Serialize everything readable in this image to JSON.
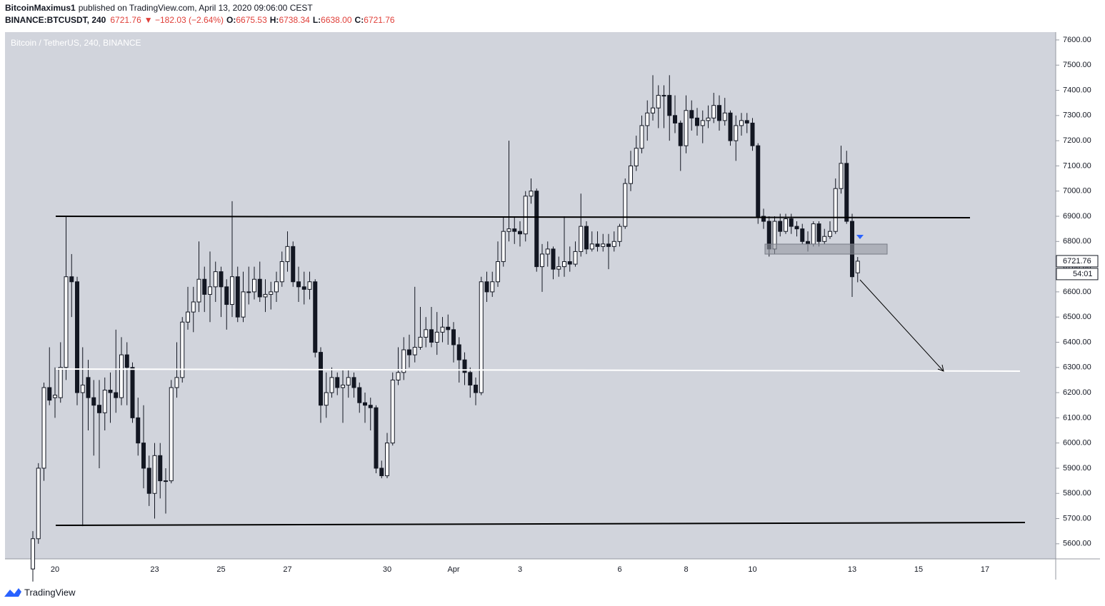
{
  "header": {
    "author": "BitcoinMaximus1",
    "published": "published on TradingView.com, April 13, 2020 09:06:00 CEST",
    "symbol": "BINANCE:BTCUSDT, 240",
    "last": "6721.76",
    "change": "▼ −182.03 (−2.64%)",
    "o_label": "O:",
    "o": "6675.53",
    "h_label": "H:",
    "h": "6738.34",
    "l_label": "L:",
    "l": "6638.00",
    "c_label": "C:",
    "c": "6721.76"
  },
  "chart_data": {
    "type": "candlestick",
    "title": "Bitcoin / TetherUS, 240, BINANCE",
    "categories": [
      null,
      null,
      null,
      null,
      "20",
      null,
      null,
      null,
      null,
      null,
      null,
      null,
      null,
      null,
      null,
      null,
      null,
      null,
      null,
      null,
      null,
      null,
      "23",
      null,
      null,
      null,
      null,
      null,
      null,
      null,
      null,
      null,
      null,
      null,
      "25",
      null,
      null,
      null,
      null,
      null,
      null,
      null,
      null,
      null,
      null,
      null,
      "27",
      null,
      null,
      null,
      null,
      null,
      null,
      null,
      null,
      null,
      null,
      null,
      null,
      null,
      null,
      null,
      null,
      null,
      "30",
      null,
      null,
      null,
      null,
      null,
      null,
      null,
      null,
      null,
      null,
      null,
      "Apr",
      null,
      null,
      null,
      null,
      null,
      null,
      null,
      null,
      null,
      null,
      null,
      "3",
      null,
      null,
      null,
      null,
      null,
      null,
      null,
      null,
      null,
      null,
      null,
      null,
      null,
      null,
      null,
      null,
      null,
      "6",
      null,
      null,
      null,
      null,
      null,
      null,
      null,
      null,
      null,
      null,
      null,
      "8",
      null,
      null,
      null,
      null,
      null,
      null,
      null,
      null,
      null,
      null,
      null,
      "10",
      null,
      null,
      null,
      null,
      null,
      null,
      null,
      null,
      null,
      null,
      null,
      null,
      null,
      null,
      null,
      null,
      null,
      "13",
      null,
      null,
      null,
      null,
      null,
      null,
      null,
      null,
      null,
      null,
      null,
      "15",
      null,
      null,
      null,
      null,
      null,
      null,
      null,
      null,
      null,
      null,
      null,
      "17",
      null,
      null,
      null,
      null,
      null,
      null,
      null,
      null,
      null,
      null,
      null,
      null,
      null
    ],
    "open": [
      5500,
      5620,
      5900,
      6220,
      6180,
      6180,
      6300,
      6660,
      6640,
      6200,
      6260,
      6180,
      6150,
      6120,
      6210,
      6200,
      6180,
      6350,
      6300,
      6100,
      6000,
      5900,
      5800,
      5950,
      5850,
      5850,
      6220,
      6260,
      6480,
      6520,
      6560,
      6650,
      6590,
      6620,
      6680,
      6620,
      6550,
      6660,
      6500,
      6600,
      6600,
      6650,
      6580,
      6590,
      6600,
      6640,
      6720,
      6780,
      6640,
      6620,
      6610,
      6640,
      6360,
      6150,
      6200,
      6260,
      6220,
      6230,
      6260,
      6220,
      6160,
      6150,
      6140,
      5900,
      5870,
      6000,
      6250,
      6280,
      6370,
      6350,
      6380,
      6420,
      6450,
      6400,
      6440,
      6460,
      6450,
      6390,
      6330,
      6280,
      6230,
      6200,
      6640,
      6600,
      6640,
      6720,
      6840,
      6850,
      6840,
      6830,
      6980,
      7000,
      6700,
      6750,
      6770,
      6690,
      6700,
      6720,
      6710,
      6760,
      6860,
      6770,
      6790,
      6780,
      6790,
      6780,
      6800,
      6860,
      7030,
      7100,
      7170,
      7260,
      7310,
      7330,
      7380,
      7380,
      7300,
      7270,
      7180,
      7320,
      7290,
      7260,
      7280,
      7290,
      7340,
      7280,
      7310,
      7200,
      7260,
      7280,
      7270,
      7180,
      6900,
      6880,
      6770,
      6880,
      6840,
      6890,
      6860,
      6850,
      6800,
      6790,
      6870,
      6800,
      6820,
      6840,
      7010,
      7110,
      6880,
      6675.53,
      null,
      null,
      null,
      null,
      null,
      null,
      null,
      null,
      null,
      null,
      null,
      null,
      null,
      null,
      null,
      null,
      null,
      null,
      null,
      null,
      null,
      null,
      null,
      null,
      null,
      null,
      null,
      null,
      null,
      null,
      null,
      null,
      null,
      null,
      null,
      null
    ],
    "high": [
      5650,
      5920,
      6240,
      6380,
      6300,
      6400,
      6900,
      6750,
      6660,
      6380,
      6330,
      6250,
      6250,
      6260,
      6280,
      6450,
      6420,
      6400,
      6320,
      6180,
      6150,
      5950,
      6000,
      6000,
      5900,
      6250,
      6400,
      6500,
      6620,
      6620,
      6800,
      6700,
      6760,
      6720,
      6700,
      6650,
      6960,
      6700,
      6680,
      6700,
      6700,
      6720,
      6650,
      6640,
      6680,
      6760,
      6840,
      6800,
      6700,
      6680,
      6680,
      6650,
      6380,
      6280,
      6300,
      6280,
      6290,
      6290,
      6280,
      6240,
      6200,
      6180,
      6150,
      5930,
      6040,
      6280,
      6380,
      6420,
      6430,
      6620,
      6540,
      6500,
      6540,
      6520,
      6500,
      6510,
      6480,
      6420,
      6360,
      6300,
      6260,
      6660,
      6680,
      6680,
      6800,
      6900,
      7200,
      6900,
      6880,
      7000,
      7050,
      7010,
      6790,
      6800,
      6780,
      6740,
      6900,
      6780,
      6800,
      6990,
      6880,
      6840,
      6840,
      6830,
      6830,
      6840,
      6870,
      7050,
      7160,
      7220,
      7300,
      7360,
      7460,
      7420,
      7420,
      7460,
      7380,
      7280,
      7380,
      7360,
      7330,
      7320,
      7340,
      7390,
      7380,
      7370,
      7320,
      7300,
      7310,
      7310,
      7290,
      7190,
      6930,
      6900,
      6900,
      6910,
      6910,
      6910,
      6880,
      6870,
      6840,
      6880,
      6880,
      6850,
      6880,
      7050,
      7180,
      7160,
      6910,
      6738.34,
      null,
      null,
      null,
      null,
      null,
      null,
      null,
      null,
      null,
      null,
      null,
      null,
      null,
      null,
      null,
      null,
      null,
      null,
      null,
      null,
      null,
      null,
      null,
      null,
      null,
      null,
      null,
      null,
      null,
      null,
      null,
      null,
      null,
      null,
      null,
      null
    ],
    "low": [
      5450,
      5600,
      5850,
      6150,
      6100,
      6160,
      6250,
      6500,
      6150,
      5670,
      6050,
      5950,
      5900,
      6050,
      6080,
      6120,
      6150,
      6150,
      6080,
      5950,
      5820,
      5750,
      5700,
      5780,
      5720,
      5840,
      6180,
      6240,
      6450,
      6440,
      6520,
      6520,
      6480,
      6560,
      6500,
      6450,
      6500,
      6480,
      6480,
      6550,
      6570,
      6560,
      6520,
      6530,
      6560,
      6620,
      6680,
      6620,
      6560,
      6550,
      6570,
      6340,
      6080,
      6100,
      6180,
      6190,
      6080,
      6180,
      6180,
      6120,
      6080,
      6050,
      5880,
      5860,
      5860,
      5990,
      6230,
      6250,
      6300,
      6320,
      6370,
      6380,
      6380,
      6350,
      6400,
      6390,
      6320,
      6240,
      6230,
      6180,
      6150,
      6190,
      6560,
      6580,
      6620,
      6700,
      6800,
      6790,
      6780,
      6800,
      6950,
      6680,
      6600,
      6700,
      6650,
      6660,
      6660,
      6680,
      6700,
      6740,
      6750,
      6760,
      6760,
      6760,
      6690,
      6760,
      6780,
      6850,
      7000,
      7080,
      7150,
      7200,
      7280,
      7250,
      7250,
      7200,
      7230,
      7080,
      7150,
      7240,
      7220,
      7190,
      7250,
      7270,
      7240,
      7260,
      7180,
      7120,
      7220,
      7230,
      7160,
      6870,
      6850,
      6740,
      6750,
      6820,
      6830,
      6830,
      6820,
      6790,
      6760,
      6780,
      6780,
      6790,
      6810,
      6830,
      6990,
      6870,
      6580,
      6638,
      null,
      null,
      null,
      null,
      null,
      null,
      null,
      null,
      null,
      null,
      null,
      null,
      null,
      null,
      null,
      null,
      null,
      null,
      null,
      null,
      null,
      null,
      null,
      null,
      null,
      null,
      null,
      null,
      null,
      null,
      null,
      null,
      null,
      null,
      null,
      null
    ],
    "close": [
      5620,
      5900,
      6220,
      6170,
      6190,
      6300,
      6660,
      6640,
      6200,
      6230,
      6180,
      6150,
      6120,
      6210,
      6200,
      6180,
      6350,
      6300,
      6100,
      6000,
      5900,
      5800,
      5950,
      5850,
      5850,
      6220,
      6260,
      6480,
      6520,
      6560,
      6650,
      6590,
      6620,
      6680,
      6620,
      6550,
      6660,
      6500,
      6600,
      6600,
      6650,
      6580,
      6590,
      6600,
      6640,
      6720,
      6780,
      6640,
      6620,
      6610,
      6640,
      6360,
      6150,
      6200,
      6260,
      6220,
      6230,
      6260,
      6220,
      6160,
      6150,
      6140,
      5900,
      5870,
      6000,
      6250,
      6280,
      6370,
      6350,
      6380,
      6420,
      6450,
      6400,
      6440,
      6460,
      6450,
      6390,
      6330,
      6280,
      6230,
      6200,
      6640,
      6600,
      6640,
      6720,
      6840,
      6850,
      6840,
      6830,
      6980,
      7000,
      6700,
      6750,
      6770,
      6690,
      6700,
      6720,
      6710,
      6760,
      6860,
      6770,
      6790,
      6780,
      6790,
      6780,
      6800,
      6860,
      7030,
      7100,
      7170,
      7260,
      7310,
      7330,
      7380,
      7380,
      7300,
      7270,
      7180,
      7320,
      7290,
      7260,
      7280,
      7290,
      7340,
      7280,
      7310,
      7200,
      7260,
      7280,
      7270,
      7180,
      6900,
      6880,
      6770,
      6880,
      6840,
      6890,
      6860,
      6850,
      6800,
      6790,
      6870,
      6800,
      6820,
      6840,
      7010,
      7110,
      6880,
      6660,
      6721.76,
      null,
      null,
      null,
      null,
      null,
      null,
      null,
      null,
      null,
      null,
      null,
      null,
      null,
      null,
      null,
      null,
      null,
      null,
      null,
      null,
      null,
      null,
      null,
      null,
      null,
      null,
      null,
      null,
      null,
      null,
      null,
      null,
      null,
      null,
      null,
      null
    ],
    "up_color": "#ffffff",
    "down_color": "#131722",
    "wick_color": "#131722",
    "ylim": [
      5540,
      7631
    ],
    "yticks": [
      {
        "value": 5600,
        "label": "5600.00"
      },
      {
        "value": 5700,
        "label": "5700.00"
      },
      {
        "value": 5800,
        "label": "5800.00"
      },
      {
        "value": 5900,
        "label": "5900.00"
      },
      {
        "value": 6000,
        "label": "6000.00"
      },
      {
        "value": 6100,
        "label": "6100.00"
      },
      {
        "value": 6200,
        "label": "6200.00"
      },
      {
        "value": 6300,
        "label": "6300.00"
      },
      {
        "value": 6400,
        "label": "6400.00"
      },
      {
        "value": 6500,
        "label": "6500.00"
      },
      {
        "value": 6600,
        "label": "6600.00"
      },
      {
        "value": 6700,
        "label": "6700.00"
      },
      {
        "value": 6800,
        "label": "6800.00"
      },
      {
        "value": 6900,
        "label": "6900.00"
      },
      {
        "value": 7000,
        "label": "7000.00"
      },
      {
        "value": 7100,
        "label": "7100.00"
      },
      {
        "value": 7200,
        "label": "7200.00"
      },
      {
        "value": 7300,
        "label": "7300.00"
      },
      {
        "value": 7400,
        "label": "7400.00"
      },
      {
        "value": 7500,
        "label": "7500.00"
      },
      {
        "value": 7600,
        "label": "7600.00"
      }
    ],
    "grid": false,
    "last_price_label": "6721.76",
    "countdown": "54:01"
  },
  "footer": {
    "brand": "TradingView"
  }
}
